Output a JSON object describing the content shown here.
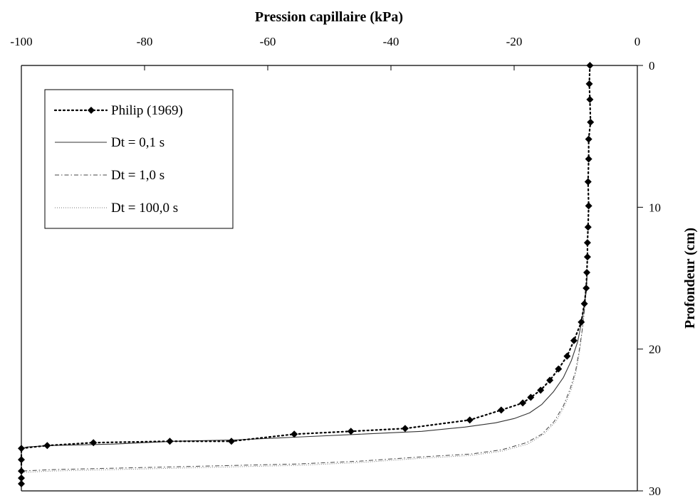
{
  "chart_data": {
    "type": "line",
    "title": "",
    "xlabel": "Pression capillaire  (kPa)",
    "ylabel": "Profondeur  (cm)",
    "xlim": [
      -100,
      0
    ],
    "ylim": [
      0,
      30
    ],
    "x_ticks": [
      -100,
      -80,
      -60,
      -40,
      -20,
      0
    ],
    "y_ticks": [
      0,
      10,
      20,
      30
    ],
    "x_axis_position": "top",
    "y_axis_position": "right",
    "y_inverted": true,
    "grid": false,
    "legend_position": "top-left",
    "series": [
      {
        "name": "Philip (1969)",
        "style": "dotted-diamond",
        "color": "#000000",
        "points": [
          [
            -7.7,
            0.0
          ],
          [
            -7.8,
            1.3
          ],
          [
            -7.7,
            2.4
          ],
          [
            -7.6,
            4.0
          ],
          [
            -7.9,
            5.2
          ],
          [
            -7.9,
            6.6
          ],
          [
            -8.0,
            8.2
          ],
          [
            -7.9,
            9.9
          ],
          [
            -8.0,
            11.4
          ],
          [
            -8.1,
            12.5
          ],
          [
            -8.1,
            13.5
          ],
          [
            -8.2,
            14.6
          ],
          [
            -8.3,
            15.7
          ],
          [
            -8.6,
            16.8
          ],
          [
            -9.1,
            18.1
          ],
          [
            -10.3,
            19.4
          ],
          [
            -11.4,
            20.5
          ],
          [
            -12.8,
            21.4
          ],
          [
            -14.2,
            22.2
          ],
          [
            -15.7,
            22.9
          ],
          [
            -17.3,
            23.4
          ],
          [
            -18.6,
            23.8
          ],
          [
            -22.1,
            24.3
          ],
          [
            -27.2,
            25.0
          ],
          [
            -37.7,
            25.6
          ],
          [
            -46.5,
            25.8
          ],
          [
            -55.7,
            26.0
          ],
          [
            -65.9,
            26.5
          ],
          [
            -75.9,
            26.5
          ],
          [
            -88.3,
            26.6
          ],
          [
            -95.8,
            26.8
          ],
          [
            -100.0,
            27.0
          ],
          [
            -100.0,
            27.8
          ],
          [
            -100.0,
            28.6
          ],
          [
            -100.0,
            29.1
          ],
          [
            -100.0,
            29.5
          ]
        ]
      },
      {
        "name": "Dt = 0,1 s",
        "style": "solid",
        "color": "#333333",
        "points": [
          [
            -8.1,
            14.5
          ],
          [
            -8.5,
            16.5
          ],
          [
            -9.0,
            18.0
          ],
          [
            -9.7,
            19.5
          ],
          [
            -10.7,
            20.8
          ],
          [
            -12.0,
            22.0
          ],
          [
            -13.6,
            23.0
          ],
          [
            -15.5,
            23.9
          ],
          [
            -17.5,
            24.5
          ],
          [
            -20.0,
            24.9
          ],
          [
            -23.0,
            25.2
          ],
          [
            -28.0,
            25.5
          ],
          [
            -35.0,
            25.8
          ],
          [
            -45.0,
            26.0
          ],
          [
            -55.0,
            26.2
          ],
          [
            -65.0,
            26.4
          ],
          [
            -75.0,
            26.5
          ],
          [
            -85.0,
            26.7
          ],
          [
            -95.0,
            26.8
          ],
          [
            -99.0,
            26.9
          ],
          [
            -100.0,
            27.0
          ],
          [
            -100.0,
            29.5
          ]
        ]
      },
      {
        "name": "Dt = 1,0 s",
        "style": "dashdot",
        "color": "#444444",
        "points": [
          [
            -8.1,
            14.5
          ],
          [
            -8.4,
            16.5
          ],
          [
            -8.9,
            18.5
          ],
          [
            -9.4,
            20.0
          ],
          [
            -10.0,
            21.5
          ],
          [
            -10.9,
            22.8
          ],
          [
            -12.0,
            24.0
          ],
          [
            -13.5,
            25.1
          ],
          [
            -15.5,
            26.0
          ],
          [
            -18.0,
            26.6
          ],
          [
            -22.0,
            27.1
          ],
          [
            -27.0,
            27.4
          ],
          [
            -35.0,
            27.6
          ],
          [
            -45.0,
            27.9
          ],
          [
            -55.0,
            28.1
          ],
          [
            -65.0,
            28.2
          ],
          [
            -75.0,
            28.3
          ],
          [
            -85.0,
            28.4
          ],
          [
            -95.0,
            28.5
          ],
          [
            -100.0,
            28.6
          ],
          [
            -100.0,
            29.5
          ]
        ]
      },
      {
        "name": "Dt = 100,0 s",
        "style": "fine-dotted",
        "color": "#777777",
        "points": [
          [
            -8.1,
            14.5
          ],
          [
            -8.4,
            16.5
          ],
          [
            -8.9,
            18.5
          ],
          [
            -9.3,
            20.0
          ],
          [
            -9.9,
            21.5
          ],
          [
            -10.7,
            22.8
          ],
          [
            -11.8,
            24.0
          ],
          [
            -13.2,
            25.1
          ],
          [
            -15.2,
            26.0
          ],
          [
            -17.8,
            26.7
          ],
          [
            -22.0,
            27.2
          ],
          [
            -27.0,
            27.5
          ],
          [
            -35.0,
            27.7
          ],
          [
            -45.0,
            28.0
          ],
          [
            -55.0,
            28.2
          ],
          [
            -65.0,
            28.3
          ],
          [
            -75.0,
            28.4
          ],
          [
            -85.0,
            28.5
          ],
          [
            -95.0,
            28.6
          ],
          [
            -100.0,
            28.7
          ],
          [
            -100.0,
            29.5
          ]
        ]
      }
    ]
  }
}
